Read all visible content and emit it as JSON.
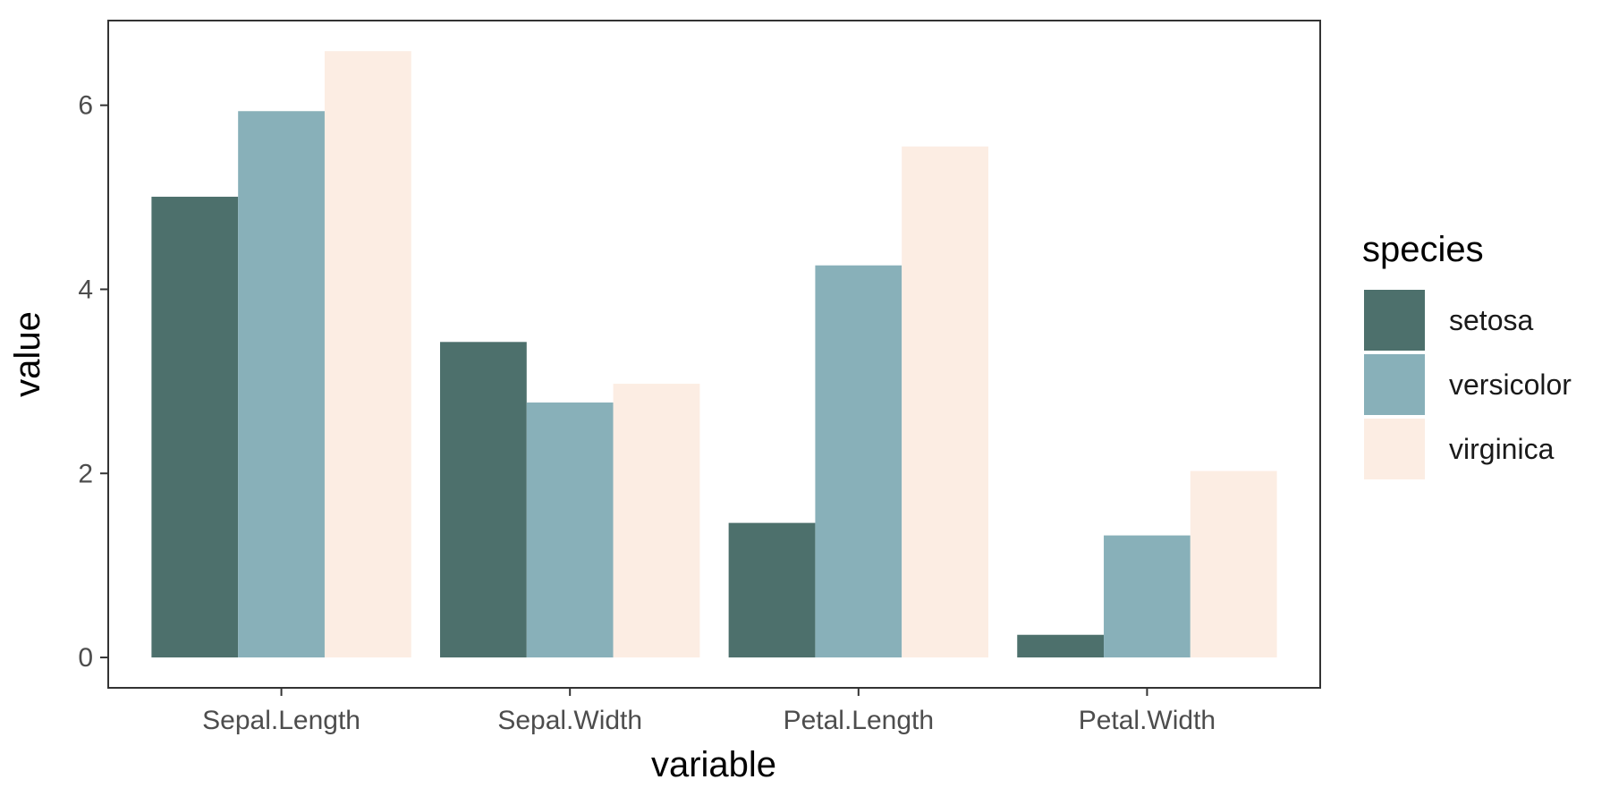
{
  "chart_data": {
    "type": "bar",
    "categories": [
      "Sepal.Length",
      "Sepal.Width",
      "Petal.Length",
      "Petal.Width"
    ],
    "series": [
      {
        "name": "setosa",
        "values": [
          5.006,
          3.428,
          1.462,
          0.246
        ],
        "color": "#4d706c"
      },
      {
        "name": "versicolor",
        "values": [
          5.936,
          2.77,
          4.26,
          1.326
        ],
        "color": "#88b0b9"
      },
      {
        "name": "virginica",
        "values": [
          6.588,
          2.974,
          5.552,
          2.026
        ],
        "color": "#fcede3"
      }
    ],
    "xlabel": "variable",
    "ylabel": "value",
    "yticks": [
      0,
      2,
      4,
      6
    ],
    "ylim": [
      -0.33,
      6.92
    ],
    "grid": false,
    "legend": {
      "title": "species",
      "position": "right"
    }
  }
}
